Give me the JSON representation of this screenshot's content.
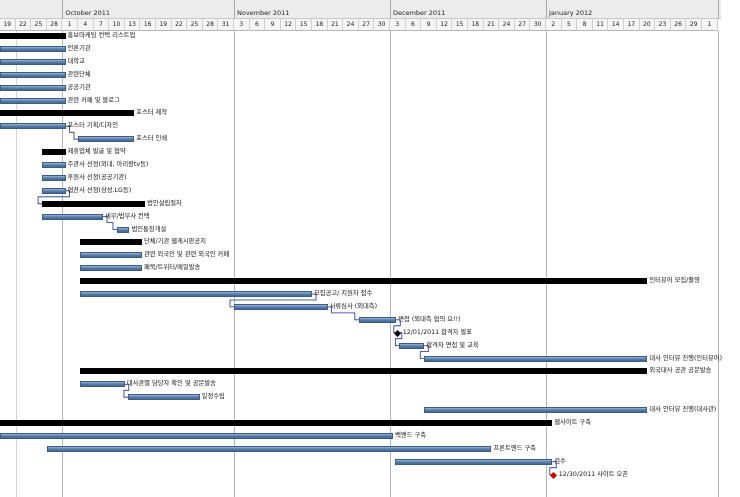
{
  "timeline": {
    "months": [
      {
        "label": "October 2011",
        "start": 4
      },
      {
        "label": "November 2011",
        "start": 15
      },
      {
        "label": "December 2011",
        "start": 25
      },
      {
        "label": "January 2012",
        "start": 35
      },
      {
        "label": "Febru",
        "start": 46
      }
    ],
    "days": [
      "19",
      "22",
      "25",
      "28",
      "1",
      "4",
      "7",
      "10",
      "13",
      "16",
      "19",
      "22",
      "25",
      "28",
      "31",
      "3",
      "6",
      "9",
      "12",
      "15",
      "18",
      "21",
      "24",
      "27",
      "30",
      "3",
      "6",
      "9",
      "12",
      "15",
      "18",
      "21",
      "24",
      "27",
      "30",
      "2",
      "5",
      "8",
      "11",
      "14",
      "17",
      "20",
      "23",
      "26",
      "29",
      "1"
    ]
  },
  "tasks": [
    {
      "label": "홍보마케팅 컨택 리스트업",
      "start": 0,
      "end": 4.2,
      "row": 0,
      "type": "summary"
    },
    {
      "label": "언론기관",
      "start": 0,
      "end": 4.2,
      "row": 1,
      "type": "task"
    },
    {
      "label": "대학교",
      "start": 0,
      "end": 4.2,
      "row": 2,
      "type": "task"
    },
    {
      "label": "관련단체",
      "start": 0,
      "end": 4.2,
      "row": 3,
      "type": "task"
    },
    {
      "label": "공공기관",
      "start": 0,
      "end": 4.2,
      "row": 4,
      "type": "task"
    },
    {
      "label": "관련 카페 및 블로그",
      "start": 0,
      "end": 4.2,
      "row": 5,
      "type": "task"
    },
    {
      "label": "포스터 제작",
      "start": 0,
      "end": 8.6,
      "row": 6,
      "type": "summary"
    },
    {
      "label": "포스터 기획/디자인",
      "start": 0,
      "end": 4.2,
      "row": 7,
      "type": "task"
    },
    {
      "label": "포스터 인쇄",
      "start": 5.0,
      "end": 8.6,
      "row": 8,
      "type": "task"
    },
    {
      "label": "제휴업체 발굴 및 협약",
      "start": 2.7,
      "end": 4.2,
      "row": 9,
      "type": "summary"
    },
    {
      "label": "주관사 선정(외대, 아리랑tv등)",
      "start": 2.7,
      "end": 4.2,
      "row": 10,
      "type": "task"
    },
    {
      "label": "후원사 선정(공공기관)",
      "start": 2.7,
      "end": 4.2,
      "row": 11,
      "type": "task"
    },
    {
      "label": "협찬사 선정(삼성,LG등)",
      "start": 2.7,
      "end": 4.2,
      "row": 12,
      "type": "task"
    },
    {
      "label": "법인설립절차",
      "start": 2.7,
      "end": 9.3,
      "row": 13,
      "type": "summary"
    },
    {
      "label": "세무/법무사 컨택",
      "start": 2.7,
      "end": 6.6,
      "row": 14,
      "type": "task"
    },
    {
      "label": "법인통장개설",
      "start": 7.5,
      "end": 8.3,
      "row": 15,
      "type": "task"
    },
    {
      "label": "단체/기관 웹게시판공지",
      "start": 5.1,
      "end": 9.1,
      "row": 16,
      "type": "summary"
    },
    {
      "label": "관련 외국인 및 관련 외국인 카페",
      "start": 5.1,
      "end": 9.1,
      "row": 17,
      "type": "task"
    },
    {
      "label": "페북/트위터/메일발송",
      "start": 5.1,
      "end": 9.1,
      "row": 18,
      "type": "task"
    },
    {
      "label": "인터뷰어 모집/촬영",
      "start": 5.1,
      "end": 41.5,
      "row": 19,
      "type": "summary"
    },
    {
      "label": "모집공고/ 지원자 접수",
      "start": 5.1,
      "end": 20.0,
      "row": 20,
      "type": "task"
    },
    {
      "label": "서류심사 (외대측)",
      "start": 15.0,
      "end": 21.0,
      "row": 21,
      "type": "task"
    },
    {
      "label": "면접 (외대측 협의 요!!)",
      "start": 23.0,
      "end": 25.4,
      "row": 22,
      "type": "task"
    },
    {
      "label": "12/01/2011 합격자 발표",
      "start": 25.5,
      "end": 25.5,
      "row": 23,
      "type": "milestone"
    },
    {
      "label": "합격자 면접 및 교육",
      "start": 25.6,
      "end": 27.2,
      "row": 24,
      "type": "task"
    },
    {
      "label": "대사 인터뷰 진행(인터뷰어)",
      "start": 27.2,
      "end": 41.5,
      "row": 25,
      "type": "task"
    },
    {
      "label": "외국대사 공관 공문발송",
      "start": 5.1,
      "end": 41.5,
      "row": 26,
      "type": "summary"
    },
    {
      "label": "대사관별 담당자 확인 및 공문발송",
      "start": 5.1,
      "end": 8.0,
      "row": 27,
      "type": "task"
    },
    {
      "label": "일정수립",
      "start": 8.2,
      "end": 12.8,
      "row": 28,
      "type": "task"
    },
    {
      "label": "대사 인터뷰 진행(대사관)",
      "start": 27.2,
      "end": 41.5,
      "row": 29,
      "type": "task"
    },
    {
      "label": "웹사이트 구축",
      "start": 0,
      "end": 35.4,
      "row": 30,
      "type": "summary"
    },
    {
      "label": "백엔드 구축",
      "start": 0,
      "end": 25.2,
      "row": 31,
      "type": "task"
    },
    {
      "label": "프론트엔드 구축",
      "start": 3.0,
      "end": 31.5,
      "row": 32,
      "type": "task"
    },
    {
      "label": "검수",
      "start": 25.3,
      "end": 35.4,
      "row": 33,
      "type": "task"
    },
    {
      "label": "12/30/2011 사이트 오픈",
      "start": 35.5,
      "end": 35.5,
      "row": 34,
      "type": "milestone-red"
    }
  ]
}
